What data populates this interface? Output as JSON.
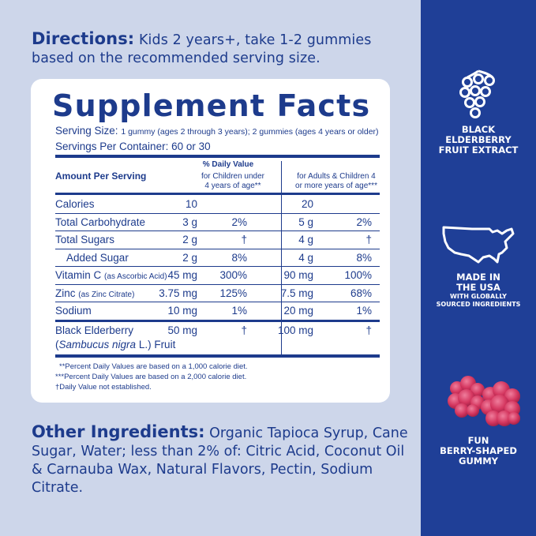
{
  "directions": {
    "heading": "Directions:",
    "text": "Kids 2 years+, take 1-2 gummies based on the recommended serving size."
  },
  "supplement_facts": {
    "title": "Supplement Facts",
    "serving_size_label": "Serving Size:",
    "serving_size_value": "1 gummy (ages 2 through 3 years); 2 gummies (ages 4 years or older)",
    "servings_per_container": "Servings Per Container: 60 or 30",
    "amount_per_serving": "Amount Per Serving",
    "dv_heading": "% Daily Value",
    "children_heading_1": "for Children under",
    "children_heading_2": "4 years of age**",
    "adults_heading_1": "for Adults & Children 4",
    "adults_heading_2": "or more years of age***",
    "rows": [
      {
        "name": "Calories",
        "sub": "",
        "child_amt": "10",
        "child_dv": "",
        "adult_amt": "20",
        "adult_dv": ""
      },
      {
        "name": "Total Carbohydrate",
        "sub": "",
        "child_amt": "3 g",
        "child_dv": "2%",
        "adult_amt": "5 g",
        "adult_dv": "2%"
      },
      {
        "name": "Total Sugars",
        "sub": "",
        "child_amt": "2 g",
        "child_dv": "†",
        "adult_amt": "4 g",
        "adult_dv": "†"
      },
      {
        "name": "Added Sugar",
        "sub": "",
        "child_amt": "2 g",
        "child_dv": "8%",
        "adult_amt": "4 g",
        "adult_dv": "8%"
      },
      {
        "name": "Vitamin C",
        "sub": "(as Ascorbic Acid)",
        "child_amt": "45 mg",
        "child_dv": "300%",
        "adult_amt": "90 mg",
        "adult_dv": "100%"
      },
      {
        "name": "Zinc",
        "sub": "(as Zinc Citrate)",
        "child_amt": "3.75 mg",
        "child_dv": "125%",
        "adult_amt": "7.5 mg",
        "adult_dv": "68%"
      },
      {
        "name": "Sodium",
        "sub": "",
        "child_amt": "10 mg",
        "child_dv": "1%",
        "adult_amt": "20 mg",
        "adult_dv": "1%"
      }
    ],
    "elderberry_line1": "Black Elderberry",
    "elderberry_line2_open": "(",
    "elderberry_line2_italic": "Sambucus nigra",
    "elderberry_line2_rest": " L.) Fruit",
    "elderberry_child_amt": "50 mg",
    "elderberry_child_dv": "†",
    "elderberry_adult_amt": "100 mg",
    "elderberry_adult_dv": "†",
    "footnote_1": "**Percent Daily Values are based on a 1,000 calorie diet.",
    "footnote_2": "***Percent Daily Values are based on a 2,000 calorie diet.",
    "footnote_3": "†Daily Value not established."
  },
  "other_ingredients": {
    "heading": "Other Ingredients:",
    "text": "Organic Tapioca Syrup, Cane Sugar, Water; less than 2% of: Citric Acid, Coconut Oil & Carnauba Wax, Natural Flavors, Pectin, Sodium Citrate."
  },
  "badges": [
    {
      "icon": "elderberry-icon",
      "line1": "BLACK",
      "line2": "ELDERBERRY",
      "line3": "FRUIT EXTRACT"
    },
    {
      "icon": "usa-map-icon",
      "line1": "MADE IN",
      "line2": "THE USA",
      "small1": "WITH GLOBALLY",
      "small2": "SOURCED INGREDIENTS"
    },
    {
      "icon": "berry-gummy-icon",
      "line1": "FUN",
      "line2": "BERRY-SHAPED",
      "line3": "GUMMY"
    }
  ],
  "colors": {
    "left_background": "#cdd6ea",
    "right_background": "#1f3f97",
    "text_navy": "#1d3b8c",
    "gummy": "#d4365f"
  }
}
